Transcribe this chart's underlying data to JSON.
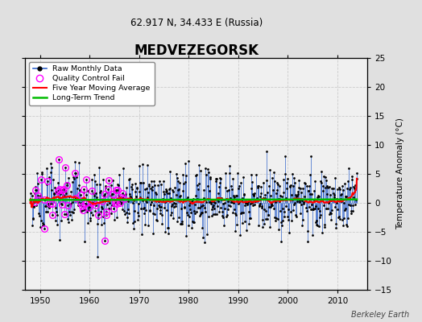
{
  "title": "MEDVEZEGORSK",
  "subtitle": "62.917 N, 34.433 E (Russia)",
  "attribution": "Berkeley Earth",
  "ylabel": "Temperature Anomaly (°C)",
  "xlim": [
    1947,
    2016
  ],
  "ylim": [
    -15,
    25
  ],
  "yticks": [
    -15,
    -10,
    -5,
    0,
    5,
    10,
    15,
    20,
    25
  ],
  "xticks": [
    1950,
    1960,
    1970,
    1980,
    1990,
    2000,
    2010
  ],
  "bg_color": "#e0e0e0",
  "plot_bg_color": "#f0f0f0",
  "raw_line_color": "#3366cc",
  "raw_marker_color": "#000000",
  "qc_fail_color": "#ff00ff",
  "moving_avg_color": "#ff0000",
  "trend_color": "#00bb00",
  "seed": 15,
  "start_year": 1948.0,
  "n_months": 792,
  "moving_avg_window": 60,
  "noise_std": 3.2,
  "trend_slope": 0.0015,
  "trend_intercept": 0.5
}
